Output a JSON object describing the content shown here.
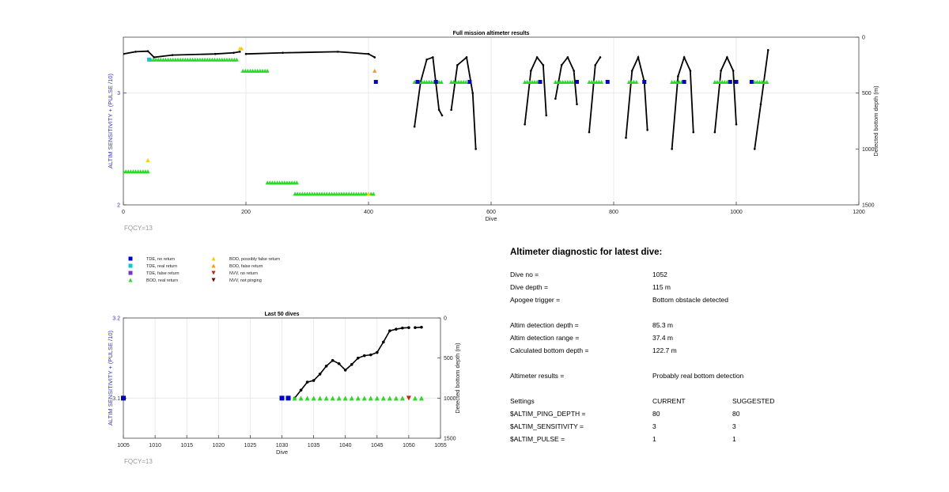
{
  "colors": {
    "tde_no_return": "#0000cc",
    "tde_real_return": "#00cccc",
    "tde_false_return": "#7733cc",
    "bod_real_return": "#22dd22",
    "bod_possibly_false": "#ffcc00",
    "bod_false_return": "#ff9900",
    "nvv_no_return": "#cc2200",
    "nvv_not_pinging": "#661100",
    "depth_line": "#000000",
    "axis_label_blue": "#3333cc",
    "fqcy_gray": "#999999"
  },
  "legend": [
    {
      "label": "TDE, no return",
      "marker": "square",
      "color": "#0000cc"
    },
    {
      "label": "TDE, real return",
      "marker": "square",
      "color": "#00cccc"
    },
    {
      "label": "TDE, false return",
      "marker": "square",
      "color": "#7733cc"
    },
    {
      "label": "BOD, real return",
      "marker": "triangle-up",
      "color": "#22dd22"
    },
    {
      "label": "BOD, possibly false return",
      "marker": "triangle-up",
      "color": "#ffcc00"
    },
    {
      "label": "BOD, false return",
      "marker": "triangle-up",
      "color": "#ff9900"
    },
    {
      "label": "NVV, no return",
      "marker": "triangle-down",
      "color": "#cc2200"
    },
    {
      "label": "NVV, not pinging",
      "marker": "triangle-down",
      "color": "#661100"
    }
  ],
  "chart_data": [
    {
      "type": "scatter",
      "title": "Full mission altimeter results",
      "xlabel": "Dive",
      "ylabel": "ALTIM SENSITIVITY + (PULSE /10)",
      "y2label": "Detected bottom depth (m)",
      "xlim": [
        0,
        1200
      ],
      "ylim": [
        2,
        3.5
      ],
      "y2lim": [
        1500,
        0
      ],
      "x_ticks": [
        "0",
        "200",
        "400",
        "600",
        "800",
        "1000",
        "1200"
      ],
      "y_ticks": [
        "2",
        "3"
      ],
      "y2_ticks": [
        "0",
        "500",
        "1000",
        "1500"
      ],
      "grid": true,
      "annotation": "FQCY=13",
      "series": [
        {
          "name": "BOD, real return",
          "marker_color": "#22dd22",
          "ranges": [
            [
              0,
              40,
              2.3
            ],
            [
              45,
              185,
              3.3
            ],
            [
              195,
              235,
              3.2
            ],
            [
              235,
              285,
              2.2
            ],
            [
              280,
              410,
              2.1
            ],
            [
              475,
              520,
              3.1
            ],
            [
              535,
              560,
              3.1
            ],
            [
              655,
              680,
              3.1
            ],
            [
              705,
              735,
              3.1
            ],
            [
              760,
              780,
              3.1
            ],
            [
              825,
              840,
              3.1
            ],
            [
              895,
              915,
              3.1
            ],
            [
              965,
              990,
              3.1
            ],
            [
              1030,
              1052,
              3.1
            ]
          ]
        },
        {
          "name": "BOD, possibly false return",
          "marker_color": "#ffcc00",
          "points": [
            [
              40,
              2.4
            ],
            [
              190,
              3.4
            ],
            [
              193,
              3.4
            ],
            [
              400,
              2.1
            ]
          ]
        },
        {
          "name": "BOD, false return",
          "marker_color": "#ff9900",
          "points": [
            [
              410,
              3.2
            ]
          ]
        },
        {
          "name": "TDE, no return",
          "marker_color": "#0000cc",
          "points": [
            [
              412,
              3.1
            ],
            [
              480,
              3.1
            ],
            [
              510,
              3.1
            ],
            [
              565,
              3.1
            ],
            [
              680,
              3.1
            ],
            [
              740,
              3.1
            ],
            [
              790,
              3.1
            ],
            [
              850,
              3.1
            ],
            [
              915,
              3.1
            ],
            [
              990,
              3.1
            ],
            [
              1000,
              3.1
            ],
            [
              1025,
              3.1
            ]
          ]
        },
        {
          "name": "TDE, real return",
          "marker_color": "#00cccc",
          "points": [
            [
              42,
              3.3
            ]
          ]
        },
        {
          "name": "Detected bottom depth (m)",
          "line_color": "#000000",
          "segments": [
            [
              [
                0,
                150
              ],
              [
                20,
                130
              ],
              [
                40,
                125
              ],
              [
                50,
                180
              ],
              [
                80,
                160
              ],
              [
                150,
                150
              ],
              [
                180,
                140
              ],
              [
                190,
                130
              ]
            ],
            [
              [
                200,
                150
              ],
              [
                260,
                140
              ],
              [
                350,
                130
              ],
              [
                400,
                150
              ],
              [
                410,
                180
              ]
            ],
            [
              [
                475,
                800
              ],
              [
                485,
                400
              ],
              [
                495,
                200
              ],
              [
                505,
                180
              ],
              [
                515,
                650
              ],
              [
                520,
                700
              ]
            ],
            [
              [
                535,
                650
              ],
              [
                545,
                250
              ],
              [
                560,
                180
              ],
              [
                570,
                500
              ],
              [
                575,
                1000
              ]
            ],
            [
              [
                655,
                780
              ],
              [
                665,
                300
              ],
              [
                675,
                180
              ],
              [
                685,
                250
              ],
              [
                690,
                700
              ]
            ],
            [
              [
                705,
                550
              ],
              [
                715,
                250
              ],
              [
                725,
                180
              ],
              [
                735,
                300
              ],
              [
                740,
                600
              ]
            ],
            [
              [
                760,
                850
              ],
              [
                770,
                250
              ],
              [
                778,
                180
              ]
            ],
            [
              [
                820,
                900
              ],
              [
                830,
                300
              ],
              [
                840,
                180
              ],
              [
                850,
                400
              ],
              [
                855,
                830
              ]
            ],
            [
              [
                895,
                1000
              ],
              [
                905,
                350
              ],
              [
                915,
                180
              ],
              [
                925,
                300
              ],
              [
                930,
                850
              ]
            ],
            [
              [
                965,
                850
              ],
              [
                975,
                300
              ],
              [
                985,
                180
              ],
              [
                995,
                300
              ],
              [
                1000,
                780
              ]
            ],
            [
              [
                1030,
                1000
              ],
              [
                1040,
                600
              ],
              [
                1045,
                400
              ],
              [
                1052,
                115
              ]
            ]
          ]
        }
      ]
    },
    {
      "type": "scatter",
      "title": "Last 50 dives",
      "xlabel": "Dive",
      "ylabel": "ALTIM SENSITIVITY + (PULSE /10)",
      "y2label": "Detected bottom depth (m)",
      "xlim": [
        1005,
        1055
      ],
      "ylim": [
        3.05,
        3.2
      ],
      "y2lim": [
        1500,
        0
      ],
      "x_ticks": [
        "1005",
        "1010",
        "1015",
        "1020",
        "1025",
        "1030",
        "1035",
        "1040",
        "1045",
        "1050",
        "1055"
      ],
      "y_ticks": [
        "3.1",
        "3.2"
      ],
      "y2_ticks": [
        "0",
        "500",
        "1000",
        "1500"
      ],
      "grid": true,
      "annotation": "FQCY=13",
      "series": [
        {
          "name": "TDE, no return",
          "marker_color": "#0000cc",
          "points": [
            [
              1005,
              3.1
            ],
            [
              1030,
              3.1
            ],
            [
              1031,
              3.1
            ]
          ]
        },
        {
          "name": "BOD, real return",
          "marker_color": "#22dd22",
          "points": [
            [
              1032,
              3.1
            ],
            [
              1033,
              3.1
            ],
            [
              1034,
              3.1
            ],
            [
              1035,
              3.1
            ],
            [
              1036,
              3.1
            ],
            [
              1037,
              3.1
            ],
            [
              1038,
              3.1
            ],
            [
              1039,
              3.1
            ],
            [
              1040,
              3.1
            ],
            [
              1041,
              3.1
            ],
            [
              1042,
              3.1
            ],
            [
              1043,
              3.1
            ],
            [
              1044,
              3.1
            ],
            [
              1045,
              3.1
            ],
            [
              1046,
              3.1
            ],
            [
              1047,
              3.1
            ],
            [
              1048,
              3.1
            ],
            [
              1049,
              3.1
            ],
            [
              1051,
              3.1
            ],
            [
              1052,
              3.1
            ]
          ]
        },
        {
          "name": "NVV, no return",
          "marker_color": "#cc2200",
          "points": [
            [
              1050,
              3.1
            ]
          ]
        },
        {
          "name": "Detected bottom depth (m)",
          "line_color": "#000000",
          "segments": [
            [
              [
                1032,
                1000
              ],
              [
                1033,
                900
              ],
              [
                1034,
                800
              ],
              [
                1035,
                780
              ],
              [
                1036,
                700
              ],
              [
                1037,
                600
              ],
              [
                1038,
                530
              ],
              [
                1039,
                570
              ],
              [
                1040,
                650
              ],
              [
                1041,
                580
              ],
              [
                1042,
                500
              ],
              [
                1043,
                470
              ],
              [
                1044,
                460
              ],
              [
                1045,
                430
              ],
              [
                1046,
                300
              ],
              [
                1047,
                160
              ],
              [
                1048,
                140
              ],
              [
                1049,
                125
              ],
              [
                1050,
                120
              ]
            ],
            [
              [
                1051,
                120
              ],
              [
                1052,
                115
              ]
            ]
          ]
        }
      ]
    }
  ],
  "diagnostic": {
    "title": "Altimeter diagnostic for latest dive:",
    "dive_no_label": "Dive no =",
    "dive_no": "1052",
    "dive_depth_label": "Dive depth =",
    "dive_depth": "115 m",
    "apogee_label": "Apogee trigger =",
    "apogee": "Bottom obstacle detected",
    "altim_depth_label": "Altim detection depth =",
    "altim_depth": "85.3 m",
    "altim_range_label": "Altim detection range =",
    "altim_range": "37.4 m",
    "calc_bottom_label": "Calculated bottom depth =",
    "calc_bottom": "122.7 m",
    "results_label": "Altimeter results =",
    "results": "Probably real bottom detection",
    "settings_label": "Settings",
    "current_label": "CURRENT",
    "suggested_label": "SUGGESTED",
    "settings": [
      {
        "name": "$ALTIM_PING_DEPTH =",
        "current": "80",
        "suggested": "80"
      },
      {
        "name": "$ALTIM_SENSITIVITY =",
        "current": "3",
        "suggested": "3"
      },
      {
        "name": "$ALTIM_PULSE =",
        "current": "1",
        "suggested": "1"
      }
    ]
  }
}
